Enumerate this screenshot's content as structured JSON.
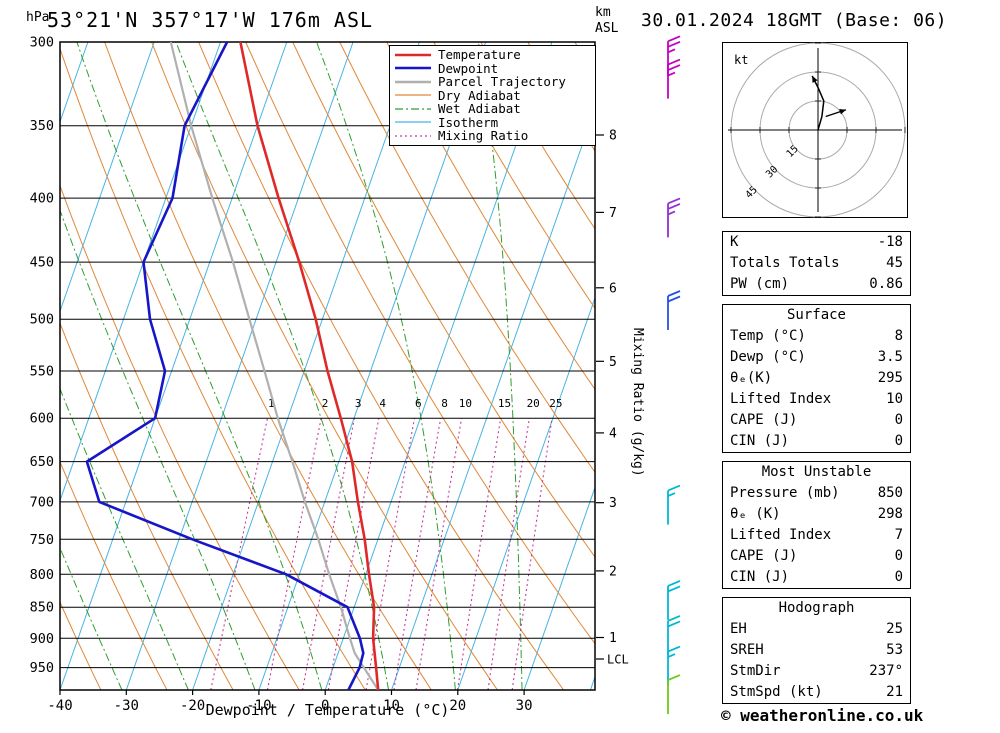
{
  "header": {
    "pressure_unit": "hPa",
    "title": "53°21'N 357°17'W 176m ASL",
    "km": "km",
    "asl": "ASL",
    "datetime": "30.01.2024 18GMT (Base: 06)"
  },
  "legend": {
    "items": [
      {
        "label": "Temperature",
        "color": "#e02828",
        "width": 2.6,
        "dash": ""
      },
      {
        "label": "Dewpoint",
        "color": "#1616c8",
        "width": 2.6,
        "dash": ""
      },
      {
        "label": "Parcel Trajectory",
        "color": "#b0b0b0",
        "width": 2.6,
        "dash": ""
      },
      {
        "label": "Dry Adiabat",
        "color": "#e08838",
        "width": 1.2,
        "dash": ""
      },
      {
        "label": "Wet Adiabat",
        "color": "#2f9e2f",
        "width": 1.2,
        "dash": "8 3 2 3"
      },
      {
        "label": "Isotherm",
        "color": "#46b4e6",
        "width": 1.2,
        "dash": ""
      },
      {
        "label": "Mixing Ratio",
        "color": "#c83c96",
        "width": 1.2,
        "dash": "2 3"
      }
    ]
  },
  "axes": {
    "pressure_ticks": [
      300,
      350,
      400,
      450,
      500,
      550,
      600,
      650,
      700,
      750,
      800,
      850,
      900,
      950
    ],
    "temp_ticks": [
      -40,
      -30,
      -20,
      -10,
      0,
      10,
      20,
      30
    ],
    "x_label": "Dewpoint / Temperature (°C)",
    "km_ticks": [
      1,
      2,
      3,
      4,
      5,
      6,
      7,
      8
    ],
    "lcl_label": "LCL",
    "mixing_ratio_axis_label": "Mixing Ratio (g/kg)",
    "mixing_ratio_values": [
      1,
      2,
      3,
      4,
      6,
      8,
      10,
      15,
      20,
      25
    ]
  },
  "chart_data": {
    "type": "skewt-logp",
    "pressure_range": [
      300,
      990
    ],
    "temp_axis_range_c": [
      -40,
      41
    ],
    "lcl_pressure_hpa": 935,
    "colors": {
      "temperature": "#e02828",
      "dewpoint": "#1616c8",
      "parcel": "#b0b0b0",
      "dry_adiabat": "#e08838",
      "wet_adiabat": "#2f9e2f",
      "isotherm": "#46b4e6",
      "mixing_ratio": "#c83c96"
    },
    "temperature_profile_p_t": [
      [
        990,
        8
      ],
      [
        950,
        6.5
      ],
      [
        925,
        5.5
      ],
      [
        900,
        4.5
      ],
      [
        850,
        3
      ],
      [
        800,
        0.5
      ],
      [
        750,
        -2
      ],
      [
        700,
        -5
      ],
      [
        650,
        -8
      ],
      [
        600,
        -12
      ],
      [
        550,
        -16.5
      ],
      [
        500,
        -21
      ],
      [
        450,
        -26.5
      ],
      [
        400,
        -33
      ],
      [
        350,
        -40
      ],
      [
        300,
        -47
      ]
    ],
    "dewpoint_profile_p_t": [
      [
        990,
        3.5
      ],
      [
        950,
        4
      ],
      [
        925,
        3.8
      ],
      [
        900,
        2.5
      ],
      [
        850,
        -1
      ],
      [
        800,
        -12
      ],
      [
        750,
        -28
      ],
      [
        700,
        -44
      ],
      [
        650,
        -48
      ],
      [
        600,
        -40
      ],
      [
        550,
        -41
      ],
      [
        500,
        -46
      ],
      [
        450,
        -50
      ],
      [
        400,
        -49
      ],
      [
        350,
        -51
      ],
      [
        300,
        -49
      ]
    ],
    "parcel_profile_p_t": [
      [
        990,
        8
      ],
      [
        960,
        5.5
      ],
      [
        925,
        2.5
      ],
      [
        900,
        1
      ],
      [
        850,
        -2
      ],
      [
        800,
        -5.5
      ],
      [
        750,
        -9
      ],
      [
        700,
        -13
      ],
      [
        650,
        -17
      ],
      [
        600,
        -21.5
      ],
      [
        550,
        -26
      ],
      [
        500,
        -31
      ],
      [
        450,
        -36.5
      ],
      [
        400,
        -43
      ],
      [
        350,
        -50
      ],
      [
        300,
        -57.5
      ]
    ],
    "wind_barbs": [
      {
        "pressure": 319,
        "speed_kt": 25,
        "color": "#c400c4"
      },
      {
        "pressure": 333,
        "speed_kt": 25,
        "color": "#c400c4"
      },
      {
        "pressure": 430,
        "speed_kt": 25,
        "color": "#9030d8"
      },
      {
        "pressure": 510,
        "speed_kt": 20,
        "color": "#2850e0"
      },
      {
        "pressure": 730,
        "speed_kt": 15,
        "color": "#00b8d4"
      },
      {
        "pressure": 870,
        "speed_kt": 20,
        "color": "#00b8d4"
      },
      {
        "pressure": 928,
        "speed_kt": 20,
        "color": "#00b8d4"
      },
      {
        "pressure": 982,
        "speed_kt": 15,
        "color": "#00b8d4"
      },
      {
        "pressure": 1035,
        "speed_kt": 10,
        "color": "#70c820"
      }
    ]
  },
  "hodograph": {
    "unit_label": "kt",
    "ring_step_kt": 15,
    "ring_labels": [
      15,
      30,
      45
    ],
    "trace_kt": [
      [
        0,
        0
      ],
      [
        2,
        7
      ],
      [
        3,
        15
      ],
      [
        0,
        22
      ],
      [
        -3,
        28
      ]
    ],
    "storm_vector_kt": [
      [
        4,
        7
      ],
      [
        14.5,
        10.5
      ]
    ]
  },
  "tables": [
    {
      "header": "",
      "rows": [
        [
          "K",
          "-18"
        ],
        [
          "Totals Totals",
          "45"
        ],
        [
          "PW (cm)",
          "0.86"
        ]
      ]
    },
    {
      "header": "Surface",
      "rows": [
        [
          "Temp (°C)",
          "8"
        ],
        [
          "Dewp (°C)",
          "3.5"
        ],
        [
          "θₑ(K)",
          "295"
        ],
        [
          "Lifted Index",
          "10"
        ],
        [
          "CAPE (J)",
          "0"
        ],
        [
          "CIN (J)",
          "0"
        ]
      ]
    },
    {
      "header": "Most Unstable",
      "rows": [
        [
          "Pressure (mb)",
          "850"
        ],
        [
          "θₑ (K)",
          "298"
        ],
        [
          "Lifted Index",
          "7"
        ],
        [
          "CAPE (J)",
          "0"
        ],
        [
          "CIN (J)",
          "0"
        ]
      ]
    },
    {
      "header": "Hodograph",
      "rows": [
        [
          "EH",
          "25"
        ],
        [
          "SREH",
          "53"
        ],
        [
          "StmDir",
          "237°"
        ],
        [
          "StmSpd (kt)",
          "21"
        ]
      ]
    }
  ],
  "footer": {
    "copyright": "© weatheronline.co.uk"
  }
}
